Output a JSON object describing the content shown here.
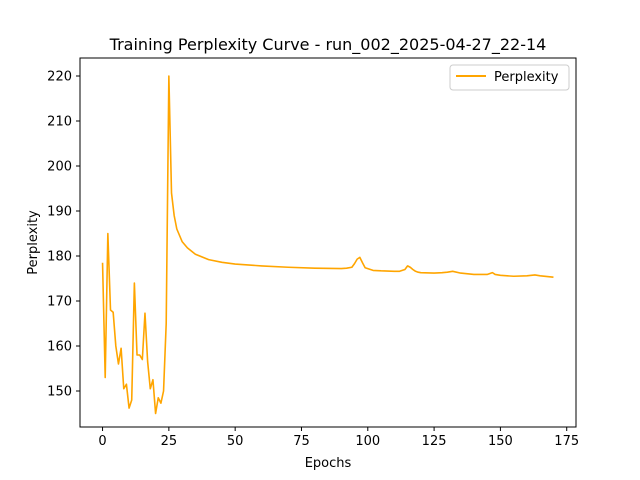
{
  "chart_data": {
    "type": "line",
    "title": "Training Perplexity Curve - run_002_2025-04-27_22-14",
    "xlabel": "Epochs",
    "ylabel": "Perplexity",
    "xlim": [
      -8.5,
      178.5
    ],
    "ylim": [
      142,
      224
    ],
    "xticks": [
      0,
      25,
      50,
      75,
      100,
      125,
      150,
      175
    ],
    "yticks": [
      150,
      160,
      170,
      180,
      190,
      200,
      210,
      220
    ],
    "grid": false,
    "legend": {
      "placement": "top-right",
      "entries": [
        "Perplexity"
      ]
    },
    "series": [
      {
        "name": "Perplexity",
        "color": "#ffa500",
        "x": [
          0,
          1,
          2,
          3,
          4,
          5,
          6,
          7,
          8,
          9,
          10,
          11,
          12,
          13,
          14,
          15,
          16,
          17,
          18,
          19,
          20,
          21,
          22,
          23,
          24,
          25,
          26,
          27,
          28,
          30,
          32,
          35,
          40,
          45,
          50,
          60,
          70,
          80,
          90,
          92,
          94,
          95,
          96,
          97,
          98,
          99,
          100,
          102,
          105,
          110,
          112,
          113,
          114,
          115,
          116,
          117,
          118,
          119,
          120,
          125,
          128,
          130,
          132,
          135,
          140,
          145,
          147,
          148,
          150,
          155,
          160,
          163,
          165,
          170
        ],
        "values": [
          178.5,
          153,
          185,
          168,
          167.5,
          160,
          156,
          159.5,
          150.5,
          151.5,
          146.2,
          148,
          174,
          158,
          158,
          157,
          167.3,
          156.5,
          150.5,
          152.5,
          145,
          148.5,
          147.3,
          150,
          165,
          220,
          194,
          189,
          186,
          183.2,
          181.8,
          180.4,
          179.2,
          178.6,
          178.2,
          177.8,
          177.5,
          177.3,
          177.2,
          177.3,
          177.5,
          178.3,
          179.3,
          179.7,
          178.5,
          177.4,
          177.2,
          176.8,
          176.7,
          176.6,
          176.6,
          176.8,
          177,
          177.8,
          177.5,
          177,
          176.6,
          176.4,
          176.3,
          176.2,
          176.3,
          176.4,
          176.6,
          176.2,
          175.9,
          175.9,
          176.3,
          175.9,
          175.7,
          175.5,
          175.6,
          175.8,
          175.6,
          175.3
        ]
      }
    ]
  }
}
